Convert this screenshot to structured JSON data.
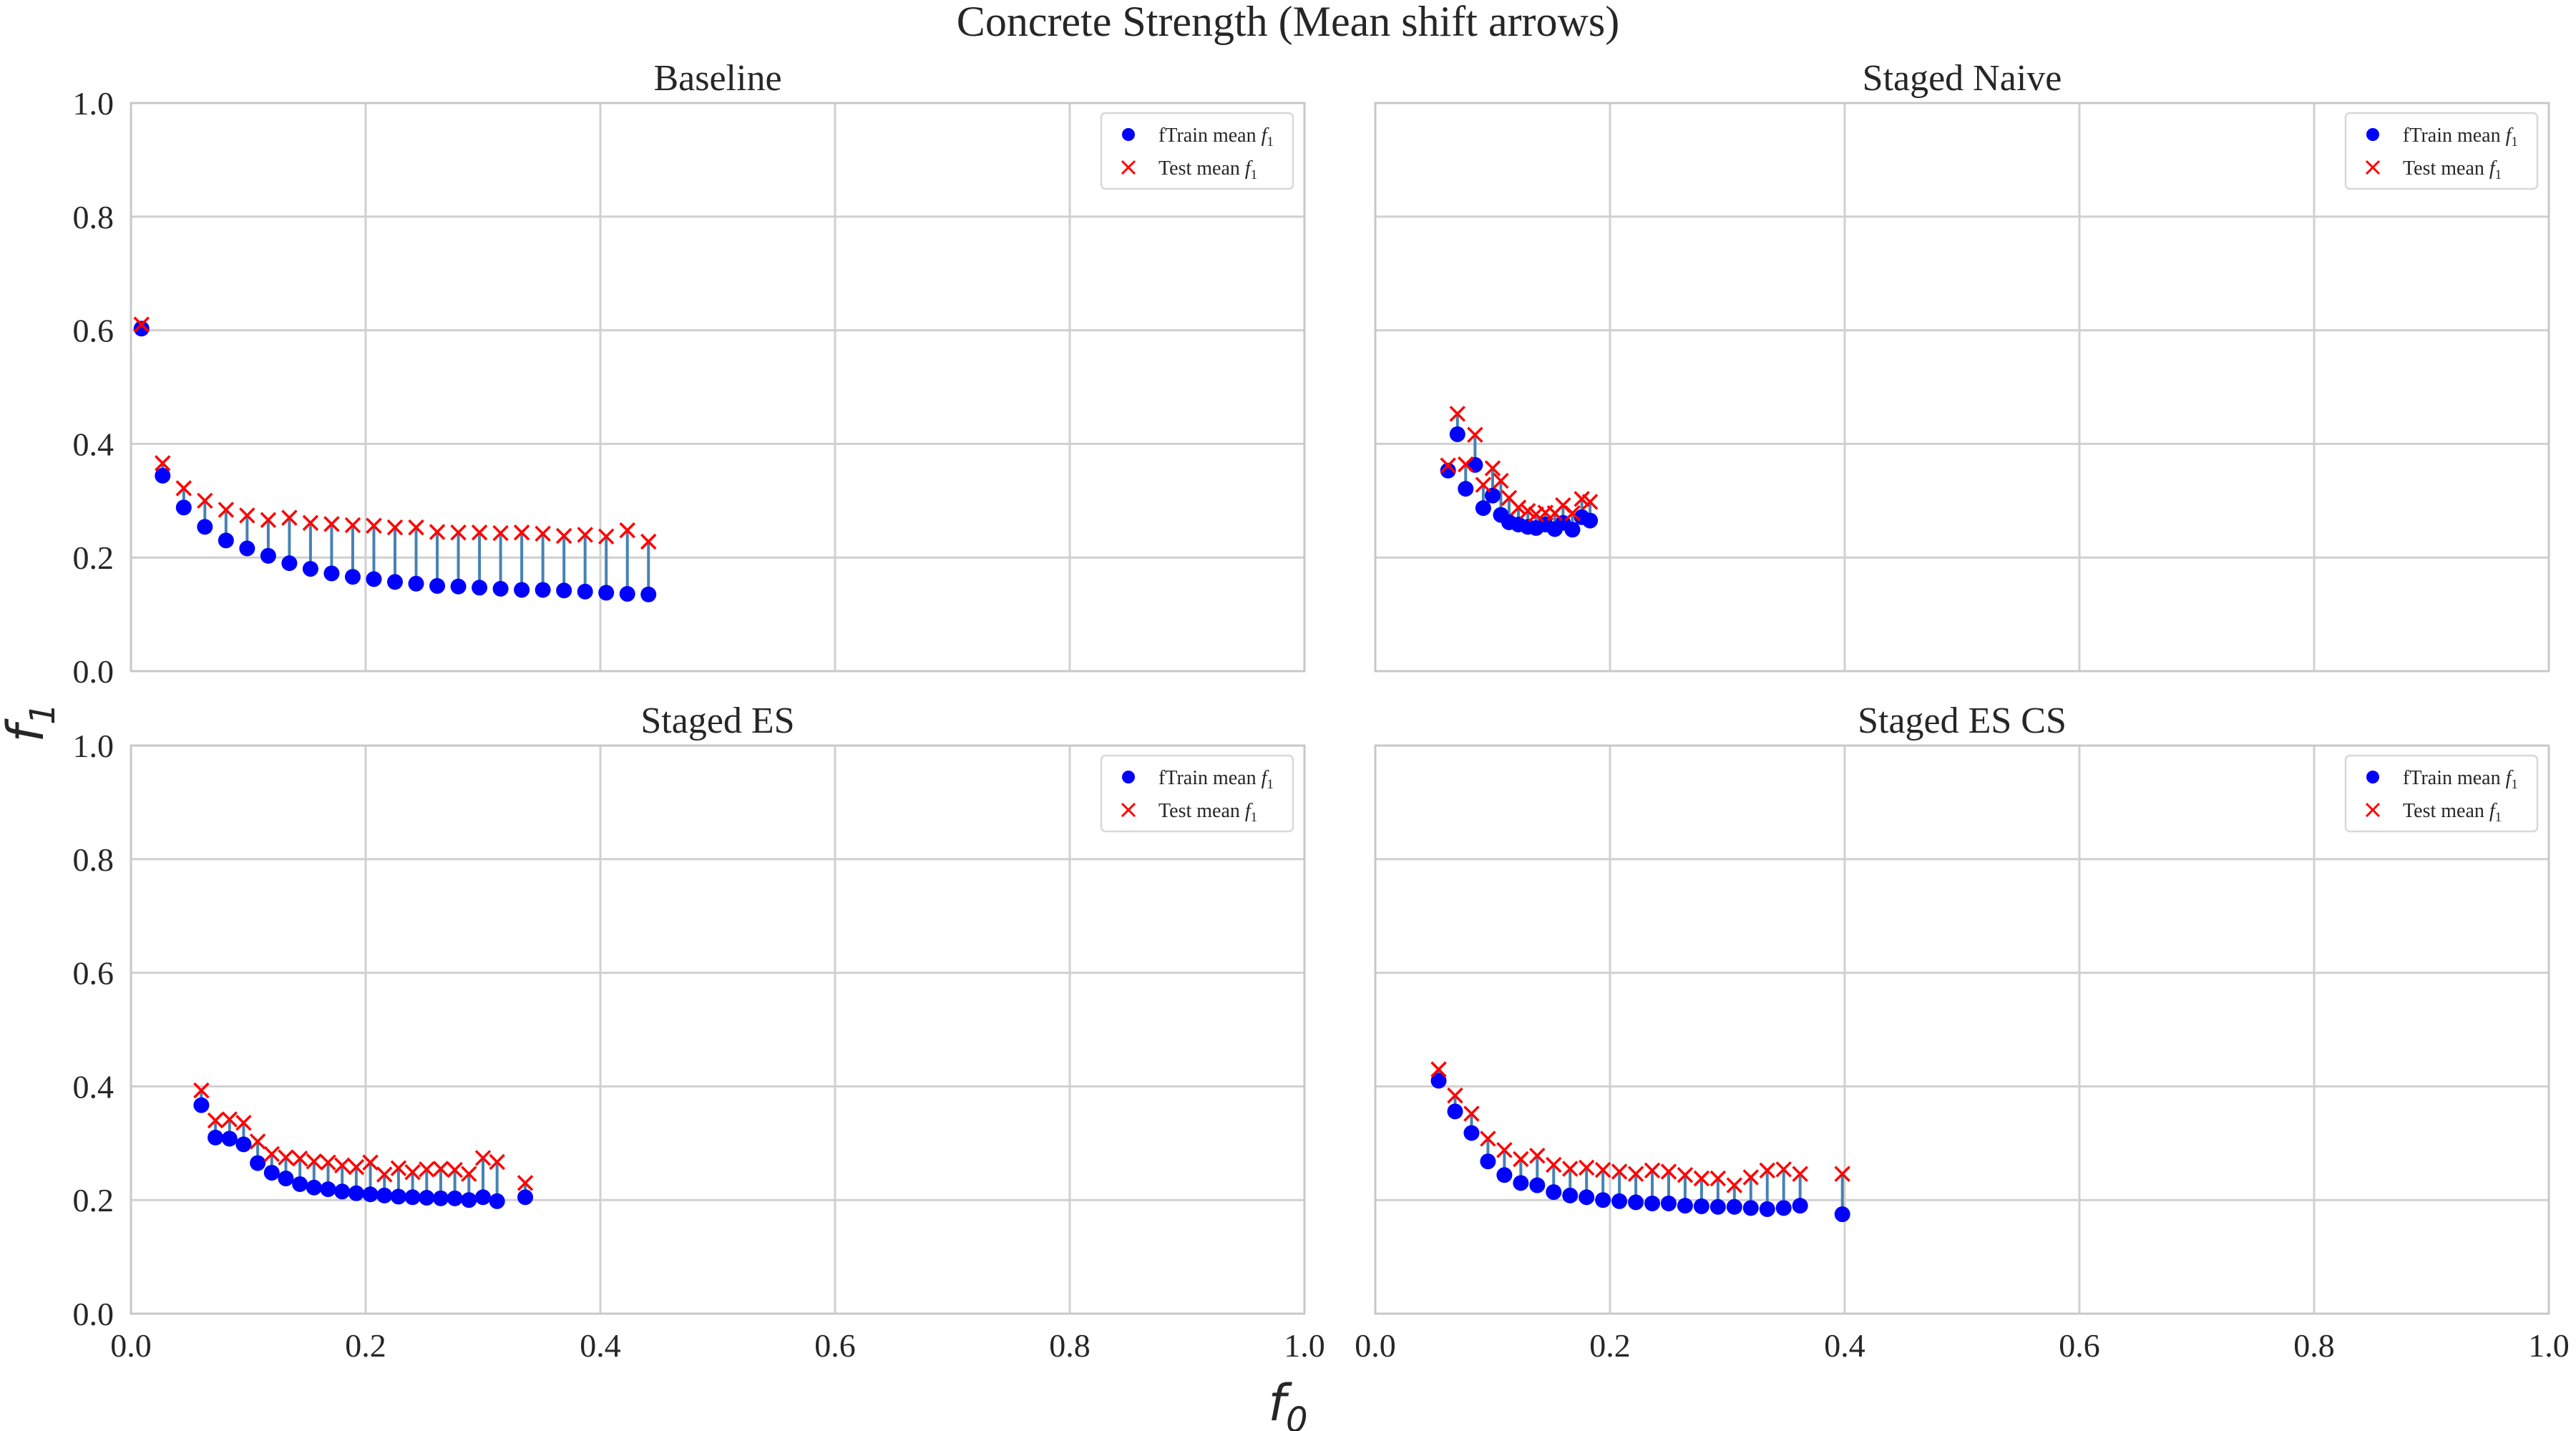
{
  "figure": {
    "title": "Concrete Strength (Mean shift arrows)",
    "xlabel": "f",
    "xlabel_sub": "0",
    "ylabel": "f",
    "ylabel_sub": "1"
  },
  "colors": {
    "train_marker": "#0000ff",
    "test_marker": "#ff0000",
    "shift_arrow": "#4682b4",
    "grid": "#d0d0d0",
    "axes_edge": "#c8c8c8",
    "text": "#262626"
  },
  "chart_data": [
    {
      "type": "scatter",
      "title": "Baseline",
      "xlim": [
        0,
        1
      ],
      "ylim": [
        0,
        1
      ],
      "xticks": [
        "0.0",
        "0.2",
        "0.4",
        "0.6",
        "0.8",
        "1.0"
      ],
      "yticks": [
        "0.0",
        "0.2",
        "0.4",
        "0.6",
        "0.8",
        "1.0"
      ],
      "grid": true,
      "legend_position": "top-right",
      "series": [
        {
          "name": "fTrain mean f1",
          "label_prefix": "fTrain mean ",
          "label_var": "f",
          "label_sub": "1",
          "marker": "circle",
          "x": [
            0.009,
            0.027,
            0.045,
            0.063,
            0.081,
            0.099,
            0.117,
            0.135,
            0.153,
            0.171,
            0.189,
            0.207,
            0.225,
            0.243,
            0.261,
            0.279,
            0.297,
            0.315,
            0.333,
            0.351,
            0.369,
            0.387,
            0.405,
            0.423,
            0.441
          ],
          "y": [
            0.603,
            0.344,
            0.288,
            0.254,
            0.23,
            0.216,
            0.203,
            0.19,
            0.18,
            0.172,
            0.166,
            0.162,
            0.157,
            0.154,
            0.15,
            0.149,
            0.147,
            0.145,
            0.143,
            0.143,
            0.142,
            0.14,
            0.138,
            0.136,
            0.135
          ]
        },
        {
          "name": "Test mean f1",
          "label_prefix": "Test mean ",
          "label_var": "f",
          "label_sub": "1",
          "marker": "x",
          "x": [
            0.009,
            0.027,
            0.045,
            0.063,
            0.081,
            0.099,
            0.117,
            0.135,
            0.153,
            0.171,
            0.189,
            0.207,
            0.225,
            0.243,
            0.261,
            0.279,
            0.297,
            0.315,
            0.333,
            0.351,
            0.369,
            0.387,
            0.405,
            0.423,
            0.441
          ],
          "y": [
            0.61,
            0.366,
            0.322,
            0.3,
            0.284,
            0.274,
            0.266,
            0.27,
            0.261,
            0.259,
            0.257,
            0.256,
            0.253,
            0.253,
            0.245,
            0.244,
            0.244,
            0.243,
            0.244,
            0.242,
            0.238,
            0.24,
            0.237,
            0.248,
            0.228
          ]
        }
      ]
    },
    {
      "type": "scatter",
      "title": "Staged Naive",
      "xlim": [
        0,
        1
      ],
      "ylim": [
        0,
        1
      ],
      "xticks": [
        "0.0",
        "0.2",
        "0.4",
        "0.6",
        "0.8",
        "1.0"
      ],
      "yticks": [
        "0.0",
        "0.2",
        "0.4",
        "0.6",
        "0.8",
        "1.0"
      ],
      "grid": true,
      "legend_position": "top-right",
      "series": [
        {
          "name": "fTrain mean f1",
          "label_prefix": "fTrain mean ",
          "label_var": "f",
          "label_sub": "1",
          "marker": "circle",
          "x": [
            0.062,
            0.07,
            0.077,
            0.085,
            0.092,
            0.1,
            0.107,
            0.114,
            0.122,
            0.13,
            0.137,
            0.145,
            0.153,
            0.16,
            0.168,
            0.176,
            0.183
          ],
          "y": [
            0.353,
            0.417,
            0.321,
            0.363,
            0.287,
            0.309,
            0.275,
            0.262,
            0.258,
            0.254,
            0.252,
            0.258,
            0.25,
            0.261,
            0.249,
            0.271,
            0.265
          ]
        },
        {
          "name": "Test mean f1",
          "label_prefix": "Test mean ",
          "label_var": "f",
          "label_sub": "1",
          "marker": "x",
          "x": [
            0.062,
            0.07,
            0.077,
            0.085,
            0.092,
            0.1,
            0.107,
            0.114,
            0.122,
            0.13,
            0.137,
            0.145,
            0.153,
            0.16,
            0.168,
            0.176,
            0.183
          ],
          "y": [
            0.362,
            0.453,
            0.364,
            0.416,
            0.328,
            0.357,
            0.335,
            0.305,
            0.288,
            0.282,
            0.276,
            0.279,
            0.278,
            0.292,
            0.278,
            0.303,
            0.298
          ]
        }
      ]
    },
    {
      "type": "scatter",
      "title": "Staged ES",
      "xlim": [
        0,
        1
      ],
      "ylim": [
        0,
        1
      ],
      "xticks": [
        "0.0",
        "0.2",
        "0.4",
        "0.6",
        "0.8",
        "1.0"
      ],
      "yticks": [
        "0.0",
        "0.2",
        "0.4",
        "0.6",
        "0.8",
        "1.0"
      ],
      "grid": true,
      "legend_position": "top-right",
      "series": [
        {
          "name": "fTrain mean f1",
          "label_prefix": "fTrain mean ",
          "label_var": "f",
          "label_sub": "1",
          "marker": "circle",
          "x": [
            0.06,
            0.072,
            0.084,
            0.096,
            0.108,
            0.12,
            0.132,
            0.144,
            0.156,
            0.168,
            0.18,
            0.192,
            0.204,
            0.216,
            0.228,
            0.24,
            0.252,
            0.264,
            0.276,
            0.288,
            0.3,
            0.312,
            0.336
          ],
          "y": [
            0.367,
            0.31,
            0.308,
            0.298,
            0.265,
            0.248,
            0.238,
            0.228,
            0.222,
            0.219,
            0.215,
            0.212,
            0.21,
            0.208,
            0.206,
            0.205,
            0.204,
            0.203,
            0.203,
            0.2,
            0.205,
            0.198,
            0.205
          ]
        },
        {
          "name": "Test mean f1",
          "label_prefix": "Test mean ",
          "label_var": "f",
          "label_sub": "1",
          "marker": "x",
          "x": [
            0.06,
            0.072,
            0.084,
            0.096,
            0.108,
            0.12,
            0.132,
            0.144,
            0.156,
            0.168,
            0.18,
            0.192,
            0.204,
            0.216,
            0.228,
            0.24,
            0.252,
            0.264,
            0.276,
            0.288,
            0.3,
            0.312,
            0.336
          ],
          "y": [
            0.393,
            0.34,
            0.342,
            0.336,
            0.303,
            0.281,
            0.275,
            0.273,
            0.268,
            0.266,
            0.261,
            0.258,
            0.266,
            0.245,
            0.256,
            0.249,
            0.254,
            0.255,
            0.253,
            0.246,
            0.274,
            0.267,
            0.23
          ]
        }
      ]
    },
    {
      "type": "scatter",
      "title": "Staged ES CS",
      "xlim": [
        0,
        1
      ],
      "ylim": [
        0,
        1
      ],
      "xticks": [
        "0.0",
        "0.2",
        "0.4",
        "0.6",
        "0.8",
        "1.0"
      ],
      "yticks": [
        "0.0",
        "0.2",
        "0.4",
        "0.6",
        "0.8",
        "1.0"
      ],
      "grid": true,
      "legend_position": "top-right",
      "series": [
        {
          "name": "fTrain mean f1",
          "label_prefix": "fTrain mean ",
          "label_var": "f",
          "label_sub": "1",
          "marker": "circle",
          "x": [
            0.054,
            0.068,
            0.082,
            0.096,
            0.11,
            0.124,
            0.138,
            0.152,
            0.166,
            0.18,
            0.194,
            0.208,
            0.222,
            0.236,
            0.25,
            0.264,
            0.278,
            0.292,
            0.306,
            0.32,
            0.334,
            0.348,
            0.362,
            0.398
          ],
          "y": [
            0.41,
            0.356,
            0.318,
            0.268,
            0.244,
            0.23,
            0.226,
            0.214,
            0.208,
            0.205,
            0.2,
            0.198,
            0.196,
            0.194,
            0.194,
            0.19,
            0.189,
            0.188,
            0.188,
            0.186,
            0.184,
            0.186,
            0.19,
            0.175
          ]
        },
        {
          "name": "Test mean f1",
          "label_prefix": "Test mean ",
          "label_var": "f",
          "label_sub": "1",
          "marker": "x",
          "x": [
            0.054,
            0.068,
            0.082,
            0.096,
            0.11,
            0.124,
            0.138,
            0.152,
            0.166,
            0.18,
            0.194,
            0.208,
            0.222,
            0.236,
            0.25,
            0.264,
            0.278,
            0.292,
            0.306,
            0.32,
            0.334,
            0.348,
            0.362,
            0.398
          ],
          "y": [
            0.43,
            0.384,
            0.352,
            0.308,
            0.288,
            0.272,
            0.278,
            0.262,
            0.255,
            0.257,
            0.253,
            0.25,
            0.246,
            0.252,
            0.25,
            0.244,
            0.238,
            0.238,
            0.226,
            0.24,
            0.252,
            0.254,
            0.246,
            0.246
          ]
        }
      ]
    }
  ]
}
